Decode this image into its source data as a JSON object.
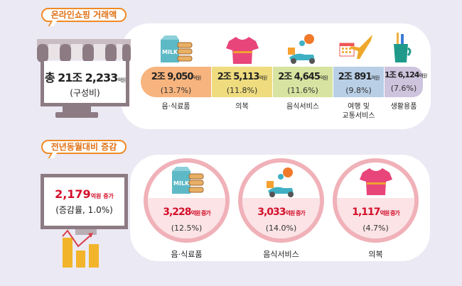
{
  "top": {
    "badge": "온라인쇼핑 거래액",
    "total_value": "총 21조 2,233",
    "total_unit": "억원",
    "total_sub": "(구성비)",
    "categories": [
      {
        "value": "2조 9,050",
        "unit": "억원",
        "share": "(13.7%)",
        "label": "음·식료품",
        "icon": "milk-cookies-icon",
        "color": "#f7b47e"
      },
      {
        "value": "2조 5,113",
        "unit": "억원",
        "share": "(11.8%)",
        "label": "의복",
        "icon": "tshirt-icon",
        "color": "#efdc7e"
      },
      {
        "value": "2조 4,645",
        "unit": "억원",
        "share": "(11.6%)",
        "label": "음식서비스",
        "icon": "delivery-scooter-icon",
        "color": "#d7e3a0"
      },
      {
        "value": "2조 891",
        "unit": "억원",
        "share": "(9.8%)",
        "label": "여행 및\n교통서비스",
        "icon": "calendar-airplane-icon",
        "color": "#b8cfe6"
      },
      {
        "value": "1조 6,124",
        "unit": "억원",
        "share": "(7.6%)",
        "label": "생활용품",
        "icon": "toothbrush-cup-icon",
        "color": "#cec4dd"
      }
    ]
  },
  "bottom": {
    "badge": "전년동월대비 증감",
    "total_value": "2,179",
    "total_unit": "억원 증가",
    "total_sub": "(증감률, 1.0%)",
    "items": [
      {
        "value": "3,228",
        "unit": "억원 증가",
        "rate": "(12.5%)",
        "label": "음·식료품",
        "icon": "milk-cookies-icon"
      },
      {
        "value": "3,033",
        "unit": "억원 증가",
        "rate": "(14.0%)",
        "label": "음식서비스",
        "icon": "delivery-scooter-icon"
      },
      {
        "value": "1,117",
        "unit": "억원 증가",
        "rate": "(4.7%)",
        "label": "의복",
        "icon": "tshirt-icon"
      }
    ]
  }
}
